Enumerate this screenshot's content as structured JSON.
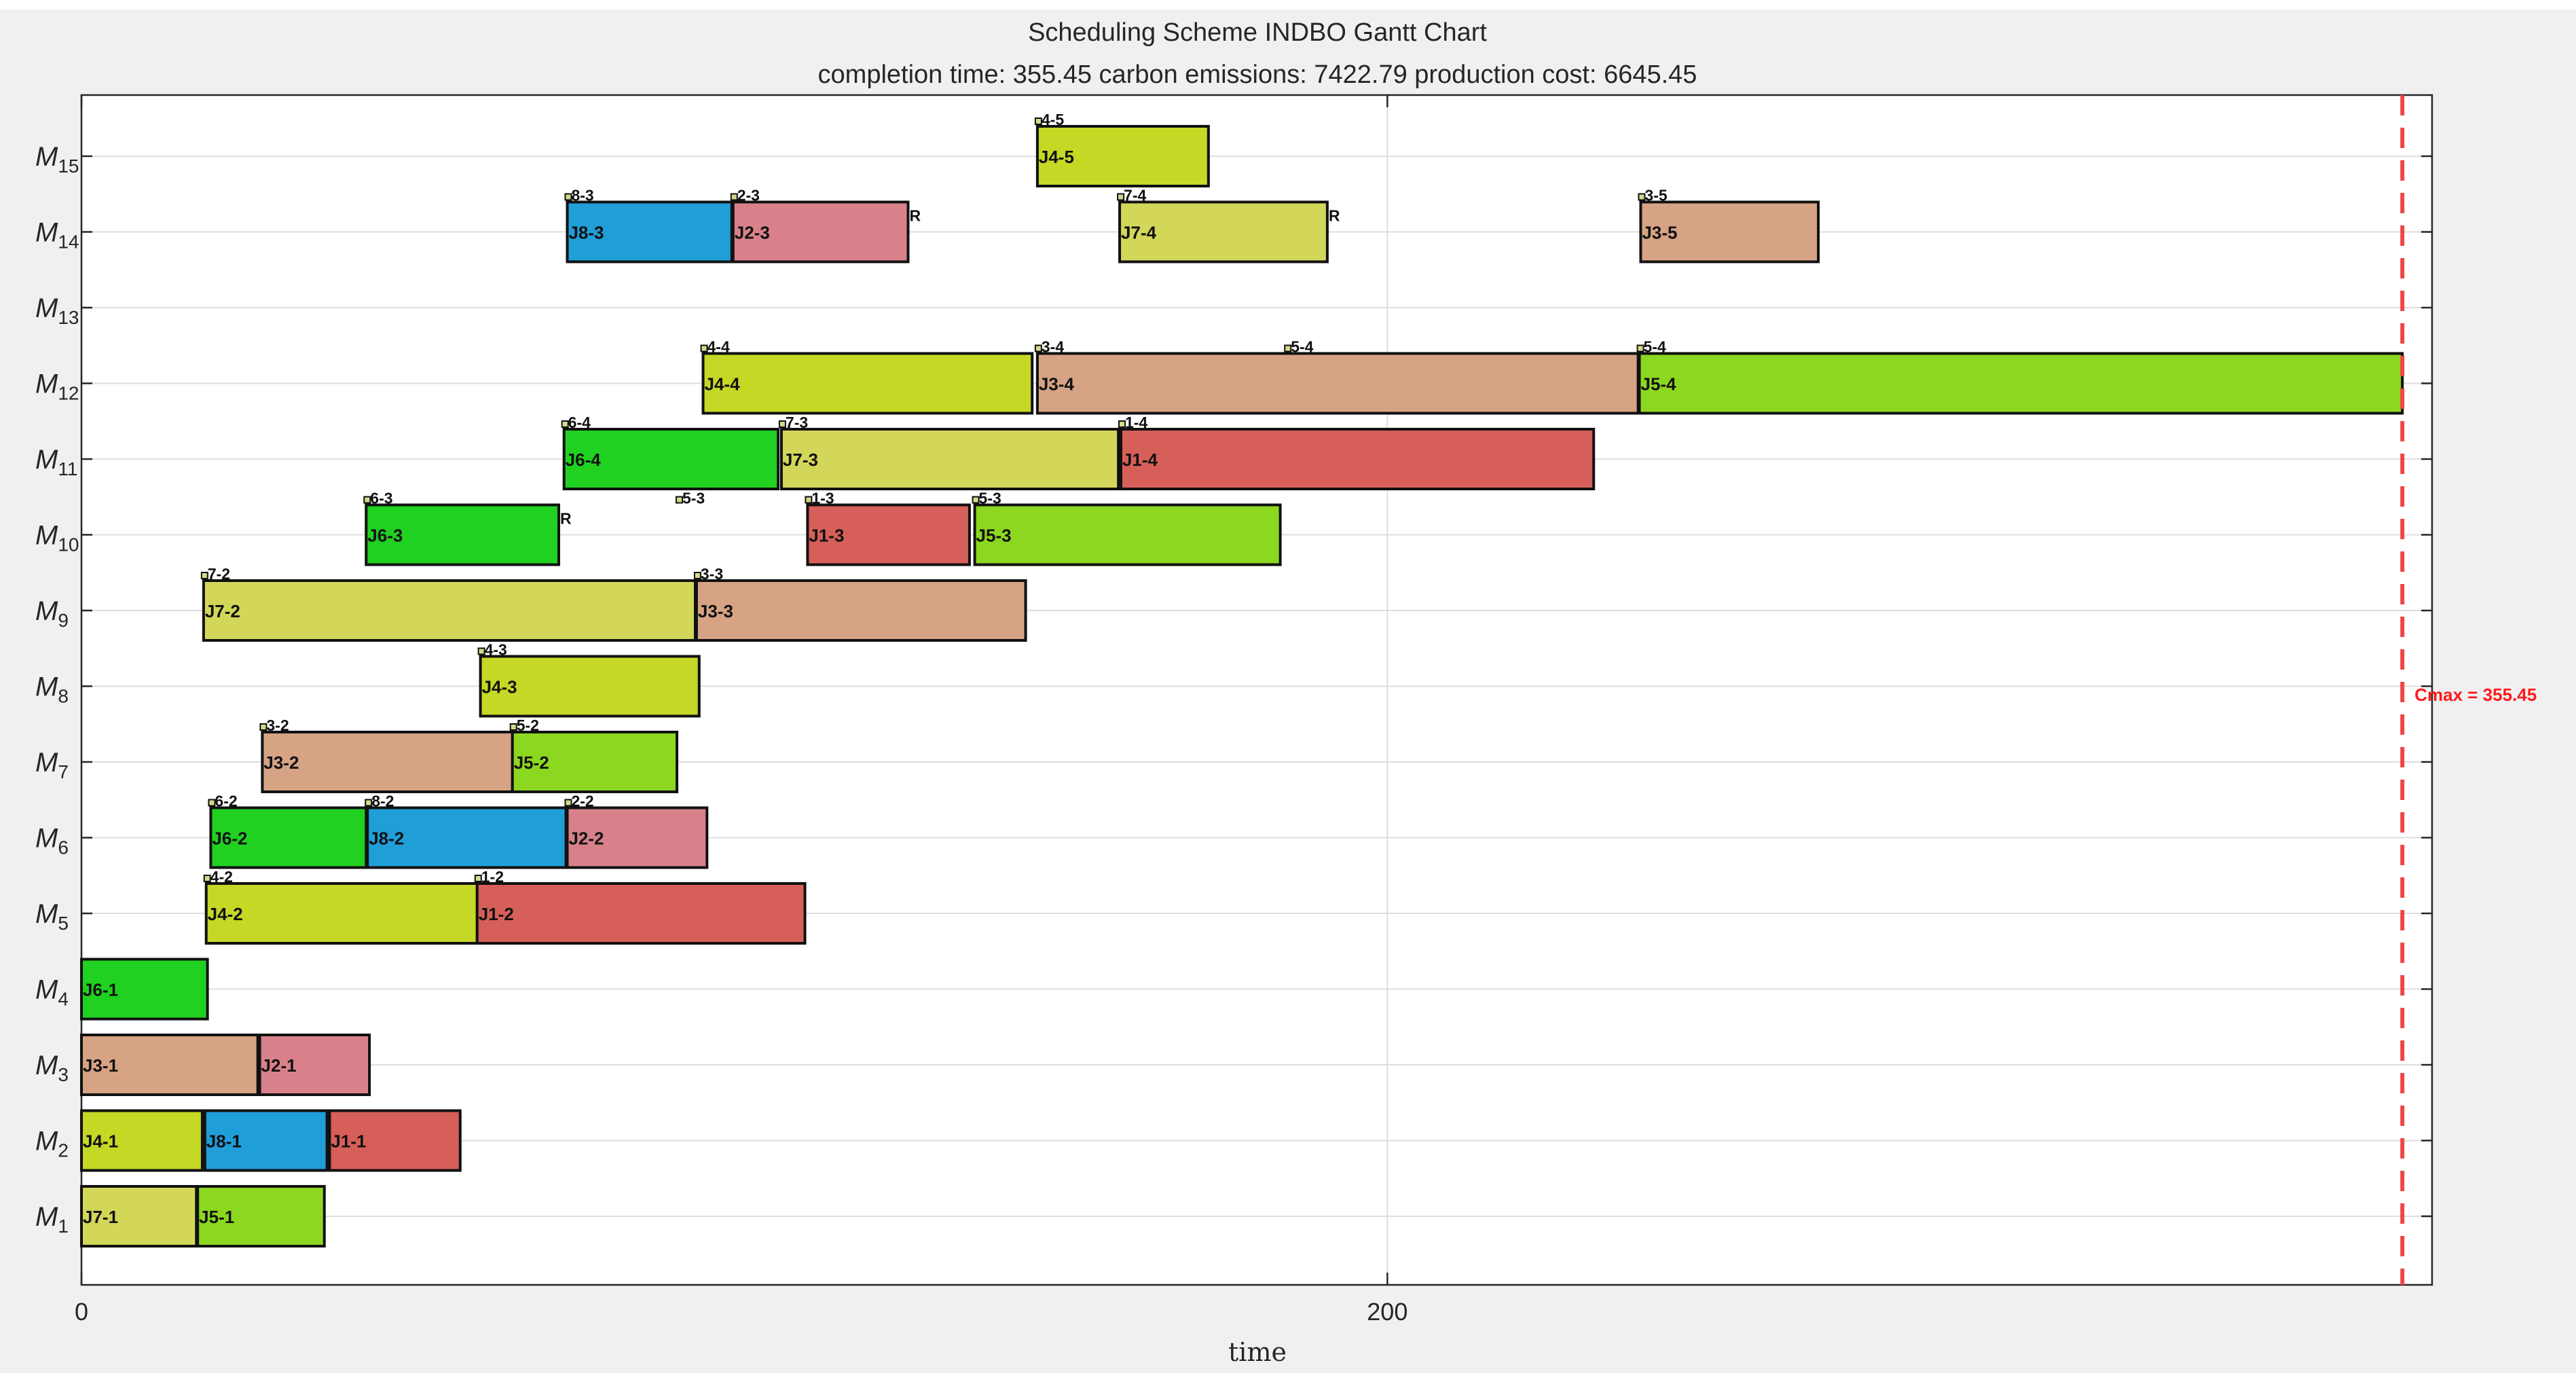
{
  "chart_data": {
    "type": "gantt",
    "title": "Scheduling Scheme  INDBO Gantt Chart",
    "subtitle": "completion time: 355.45  carbon emissions: 7422.79  production cost: 6645.45",
    "xlabel": "time",
    "xlim": [
      0,
      360
    ],
    "xticks": [
      0,
      200
    ],
    "grid": true,
    "cmax": 355.45,
    "cmax_label": "Cmax = 355.45",
    "machines": [
      {
        "id": 1,
        "prefix": "M",
        "sub": "1"
      },
      {
        "id": 2,
        "prefix": "M",
        "sub": "2"
      },
      {
        "id": 3,
        "prefix": "M",
        "sub": "3"
      },
      {
        "id": 4,
        "prefix": "M",
        "sub": "4"
      },
      {
        "id": 5,
        "prefix": "M",
        "sub": "5"
      },
      {
        "id": 6,
        "prefix": "M",
        "sub": "6"
      },
      {
        "id": 7,
        "prefix": "M",
        "sub": "7"
      },
      {
        "id": 8,
        "prefix": "M",
        "sub": "8"
      },
      {
        "id": 9,
        "prefix": "M",
        "sub": "9"
      },
      {
        "id": 10,
        "prefix": "M",
        "sub": "10"
      },
      {
        "id": 11,
        "prefix": "M",
        "sub": "11"
      },
      {
        "id": 12,
        "prefix": "M",
        "sub": "12"
      },
      {
        "id": 13,
        "prefix": "M",
        "sub": "13"
      },
      {
        "id": 14,
        "prefix": "M",
        "sub": "14"
      },
      {
        "id": 15,
        "prefix": "M",
        "sub": "15"
      }
    ],
    "job_colors": {
      "J1": "#d75f5a",
      "J2": "#d9818b",
      "J3": "#d6a384",
      "J4": "#c5d825",
      "J5": "#8cd720",
      "J6": "#21d121",
      "J7": "#d2d75a",
      "J8": "#1f9ed8"
    },
    "tasks": [
      {
        "machine": 1,
        "label": "J7-1",
        "job": "J7",
        "start": 0.0,
        "end": 17.6
      },
      {
        "machine": 1,
        "label": "J5-1",
        "job": "J5",
        "start": 17.8,
        "end": 37.2
      },
      {
        "machine": 2,
        "label": "J4-1",
        "job": "J4",
        "start": 0.0,
        "end": 18.5
      },
      {
        "machine": 2,
        "label": "J8-1",
        "job": "J8",
        "start": 18.9,
        "end": 37.6
      },
      {
        "machine": 2,
        "label": "J1-1",
        "job": "J1",
        "start": 38.0,
        "end": 58.0
      },
      {
        "machine": 3,
        "label": "J3-1",
        "job": "J3",
        "start": 0.0,
        "end": 27.0
      },
      {
        "machine": 3,
        "label": "J2-1",
        "job": "J2",
        "start": 27.3,
        "end": 44.1
      },
      {
        "machine": 4,
        "label": "J6-1",
        "job": "J6",
        "start": 0.0,
        "end": 19.3
      },
      {
        "machine": 5,
        "label": "J4-2",
        "job": "J4",
        "start": 19.1,
        "end": 60.6,
        "top": "4-2"
      },
      {
        "machine": 5,
        "label": "J1-2",
        "job": "J1",
        "start": 60.6,
        "end": 110.8,
        "top": "1-2"
      },
      {
        "machine": 6,
        "label": "J6-2",
        "job": "J6",
        "start": 19.8,
        "end": 43.6,
        "top": "6-2"
      },
      {
        "machine": 6,
        "label": "J8-2",
        "job": "J8",
        "start": 43.8,
        "end": 74.2,
        "top": "8-2"
      },
      {
        "machine": 6,
        "label": "J2-2",
        "job": "J2",
        "start": 74.4,
        "end": 95.8,
        "top": "2-2"
      },
      {
        "machine": 7,
        "label": "J3-2",
        "job": "J3",
        "start": 27.7,
        "end": 66.0,
        "top": "3-2"
      },
      {
        "machine": 7,
        "label": "J5-2",
        "job": "J5",
        "start": 66.0,
        "end": 91.2,
        "top": "5-2"
      },
      {
        "machine": 8,
        "label": "J4-3",
        "job": "J4",
        "start": 61.1,
        "end": 94.6,
        "top": "4-3"
      },
      {
        "machine": 9,
        "label": "J7-2",
        "job": "J7",
        "start": 18.7,
        "end": 94.0,
        "top": "7-2"
      },
      {
        "machine": 9,
        "label": "J3-3",
        "job": "J3",
        "start": 94.2,
        "end": 144.6,
        "top": "3-3"
      },
      {
        "machine": 10,
        "label": "J6-3",
        "job": "J6",
        "start": 43.6,
        "end": 73.1,
        "top": "6-3",
        "r": true
      },
      {
        "machine": 10,
        "label": "J1-3",
        "job": "J1",
        "start": 111.2,
        "end": 136.0,
        "top": "1-3"
      },
      {
        "machine": 10,
        "label": "J5-3",
        "job": "J5",
        "start": 136.8,
        "end": 183.6,
        "top": "5-3"
      },
      {
        "machine": 11,
        "label": "J6-4",
        "job": "J6",
        "start": 73.9,
        "end": 106.7,
        "top": "6-4"
      },
      {
        "machine": 11,
        "label": "J7-3",
        "job": "J7",
        "start": 107.2,
        "end": 158.8,
        "top": "7-3"
      },
      {
        "machine": 11,
        "label": "J1-4",
        "job": "J1",
        "start": 159.2,
        "end": 231.6,
        "top": "1-4"
      },
      {
        "machine": 12,
        "label": "J4-4",
        "job": "J4",
        "start": 95.2,
        "end": 145.6,
        "top": "4-4"
      },
      {
        "machine": 12,
        "label": "J3-4",
        "job": "J3",
        "start": 146.4,
        "end": 238.4,
        "top": "3-4"
      },
      {
        "machine": 12,
        "label": "J5-4",
        "job": "J5",
        "start": 238.6,
        "end": 355.45,
        "top": "5-4"
      },
      {
        "machine": 14,
        "label": "J8-3",
        "job": "J8",
        "start": 74.4,
        "end": 99.6,
        "top": "8-3"
      },
      {
        "machine": 14,
        "label": "J2-3",
        "job": "J2",
        "start": 99.8,
        "end": 126.6,
        "top": "2-3",
        "r": true
      },
      {
        "machine": 14,
        "label": "J7-4",
        "job": "J7",
        "start": 159.0,
        "end": 190.8,
        "top": "7-4",
        "r": true
      },
      {
        "machine": 14,
        "label": "J3-5",
        "job": "J3",
        "start": 238.8,
        "end": 266.0,
        "top": "3-5"
      },
      {
        "machine": 15,
        "label": "J4-5",
        "job": "J4",
        "start": 146.4,
        "end": 172.6,
        "top": "4-5"
      }
    ],
    "marker_labels": [
      {
        "machine": 10,
        "label": "5-3",
        "at": 91.4
      },
      {
        "machine": 12,
        "label": "5-4",
        "at": 184.6
      }
    ],
    "r_marker": "R"
  }
}
